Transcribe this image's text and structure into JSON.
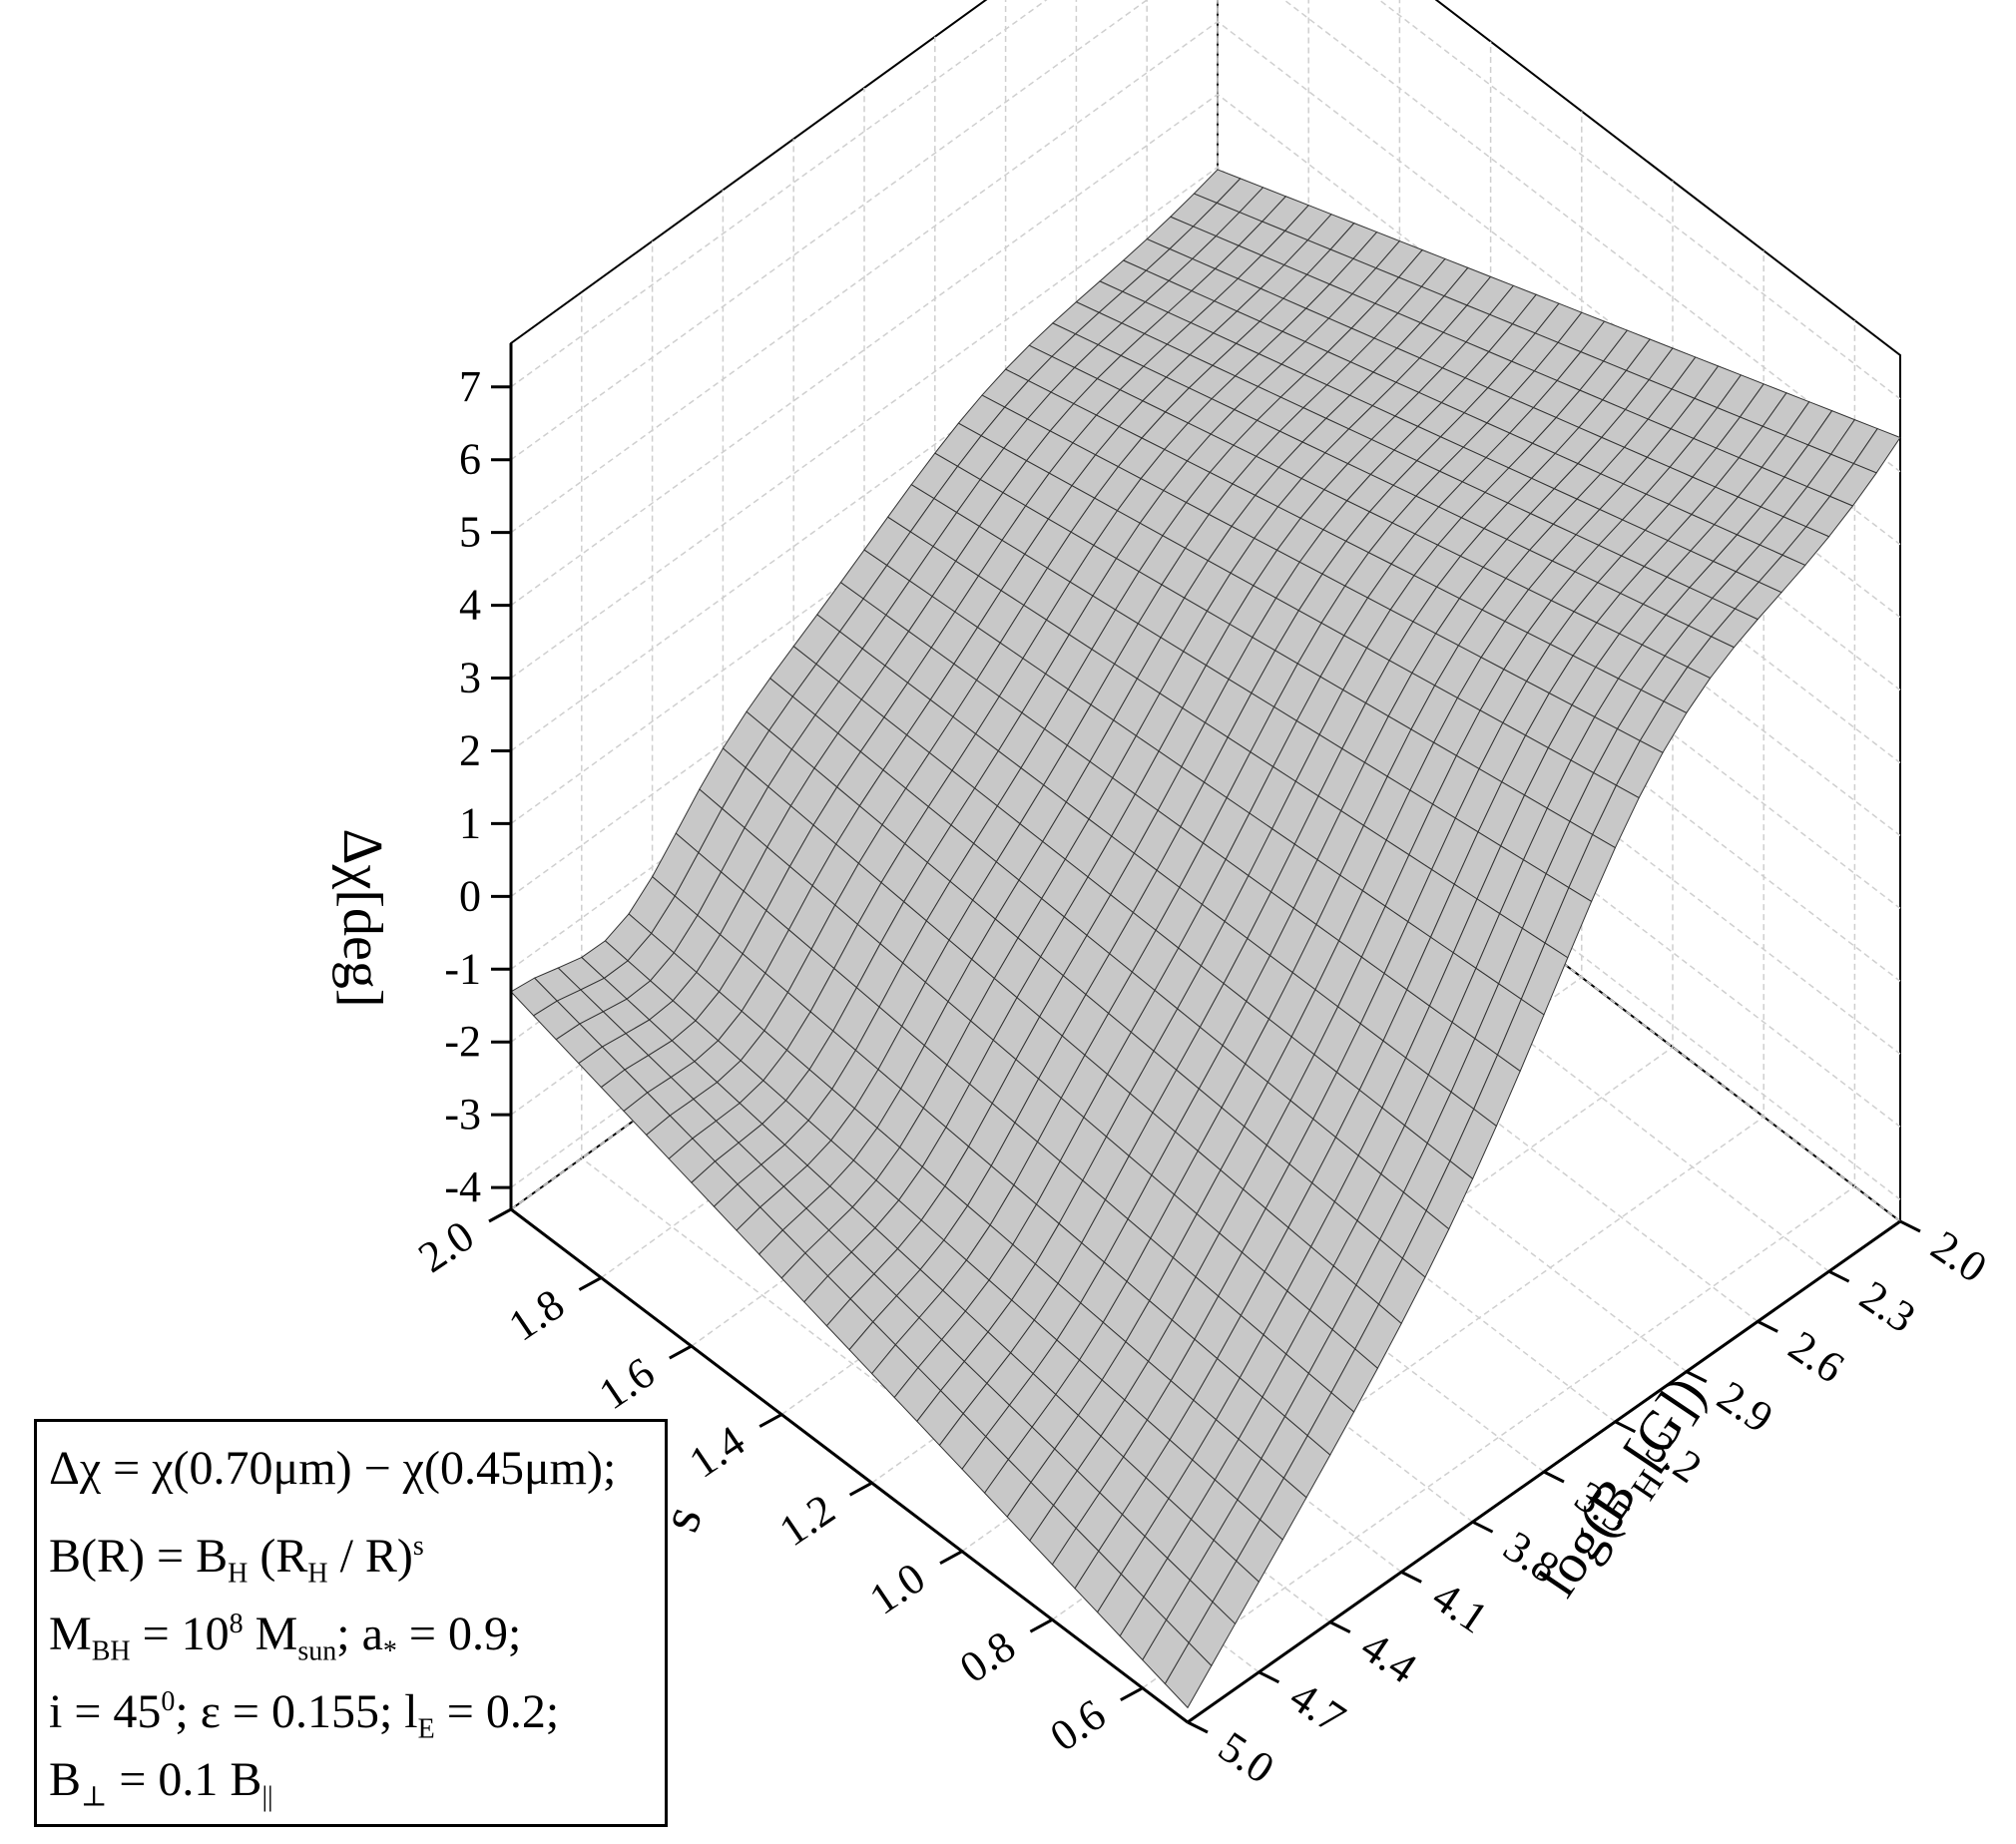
{
  "chart_data": {
    "type": "surface3d",
    "title": "",
    "zlabel": "Δχ[deg]",
    "xlabel": "log(B_H[G])",
    "ylabel": "s",
    "x_axis": {
      "label_parts": {
        "pre": "log(B",
        "sub": "H",
        "post": "[G])"
      },
      "ticks": [
        "2.0",
        "2.3",
        "2.6",
        "2.9",
        "3.2",
        "3.5",
        "3.8",
        "4.1",
        "4.4",
        "4.7",
        "5.0"
      ],
      "range": [
        2.0,
        5.0
      ]
    },
    "y_axis": {
      "label": "s",
      "ticks": [
        "2.0",
        "1.8",
        "1.6",
        "1.4",
        "1.2",
        "1.0",
        "0.8",
        "0.6"
      ],
      "range": [
        0.5,
        2.0
      ]
    },
    "z_axis": {
      "label": "Δχ[deg]",
      "ticks": [
        "-4",
        "-3",
        "-2",
        "-1",
        "0",
        "1",
        "2",
        "3",
        "4",
        "5",
        "6",
        "7"
      ],
      "range": [
        -4.3,
        7.6
      ]
    },
    "surface": {
      "x_values": [
        2.0,
        2.1,
        2.2,
        2.3,
        2.4,
        2.5,
        2.6,
        2.7,
        2.8,
        2.9,
        3.0,
        3.1,
        3.2,
        3.3,
        3.4,
        3.5,
        3.6,
        3.7,
        3.8,
        3.9,
        4.0,
        4.1,
        4.2,
        4.3,
        4.4,
        4.5,
        4.6,
        4.7,
        4.8,
        4.9,
        5.0
      ],
      "y_values": [
        0.5,
        0.55,
        0.6,
        0.65,
        0.7,
        0.75,
        0.8,
        0.85,
        0.9,
        0.95,
        1.0,
        1.05,
        1.1,
        1.15,
        1.2,
        1.25,
        1.3,
        1.35,
        1.4,
        1.45,
        1.5,
        1.55,
        1.6,
        1.65,
        1.7,
        1.75,
        1.8,
        1.85,
        1.9,
        1.95,
        2.0
      ],
      "corner_values": {
        "x2.0_s0.5": 6.3,
        "x2.0_s2.0": 2.9,
        "x5.0_s0.5": -4.1,
        "x5.0_s2.0": -1.1
      },
      "ridge_peak": {
        "x": 2.6,
        "s": 0.5,
        "z": 7.4
      },
      "color": "#c8c8c8",
      "mesh_color": "#333333"
    },
    "grid": true
  },
  "legend": {
    "line1": {
      "text": "Δχ = χ(0.70μm) − χ(0.45μm);"
    },
    "line2": {
      "a": "B(R) = B",
      "a_sub": "H",
      "b": " (R",
      "b_sub": "H",
      "c": " / R)",
      "c_sup": "s"
    },
    "line3": {
      "a": "M",
      "a_sub": "BH",
      "b": " = 10",
      "b_sup": "8",
      "c": " M",
      "c_sub": "sun",
      "d": "; a",
      "d_sub": "*",
      "e": " = 0.9;"
    },
    "line4": {
      "a": "i = 45",
      "a_sup": "0",
      "b": "; ε = 0.155; l",
      "b_sub": "E",
      "c": " = 0.2;"
    },
    "line5": {
      "a": "B",
      "a_sub": "⊥",
      "b": " = 0.1 B",
      "b_sub": "||"
    }
  }
}
